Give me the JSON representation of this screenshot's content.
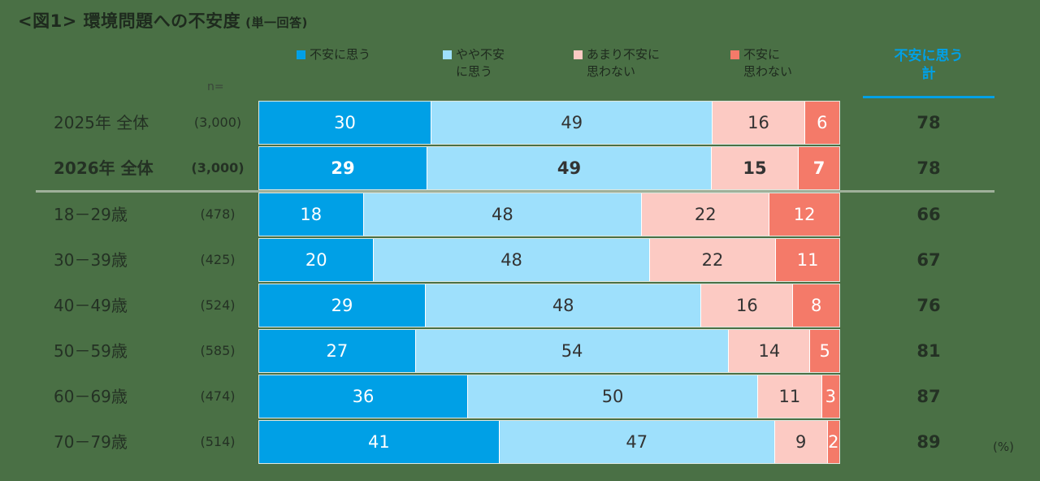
{
  "title": "<図1> 環境問題への不安度",
  "subtitle": "(単一回答)",
  "n_label": "n=",
  "unit": "(%)",
  "total_header": "不安に思う\n計",
  "colors": [
    "#00a0e6",
    "#9ee0fc",
    "#fccac3",
    "#f47a69"
  ],
  "legend": [
    "不安に思う",
    "やや不安\nに思う",
    "あまり不安に\n思わない",
    "不安に\n思わない"
  ],
  "chart_data": {
    "type": "bar",
    "orientation": "horizontal-stacked-100",
    "title": "<図1> 環境問題への不安度",
    "subtitle": "(単一回答)",
    "series_names": [
      "不安に思う",
      "やや不安に思う",
      "あまり不安に思わない",
      "不安に思わない"
    ],
    "rows": [
      {
        "label": "2025年 全体",
        "n": "(3,000)",
        "values": [
          30,
          49,
          16,
          6
        ],
        "total": "78",
        "bold": false
      },
      {
        "label": "2026年 全体",
        "n": "(3,000)",
        "values": [
          29,
          49,
          15,
          7
        ],
        "total": "78",
        "bold": true
      },
      {
        "label": "18－29歳",
        "n": "(478)",
        "values": [
          18,
          48,
          22,
          12
        ],
        "total": "66",
        "bold": false
      },
      {
        "label": "30－39歳",
        "n": "(425)",
        "values": [
          20,
          48,
          22,
          11
        ],
        "total": "67",
        "bold": false
      },
      {
        "label": "40－49歳",
        "n": "(524)",
        "values": [
          29,
          48,
          16,
          8
        ],
        "total": "76",
        "bold": false
      },
      {
        "label": "50－59歳",
        "n": "(585)",
        "values": [
          27,
          54,
          14,
          5
        ],
        "total": "81",
        "bold": false
      },
      {
        "label": "60－69歳",
        "n": "(474)",
        "values": [
          36,
          50,
          11,
          3
        ],
        "total": "87",
        "bold": false
      },
      {
        "label": "70－79歳",
        "n": "(514)",
        "values": [
          41,
          47,
          9,
          2
        ],
        "total": "89",
        "bold": false
      }
    ]
  }
}
